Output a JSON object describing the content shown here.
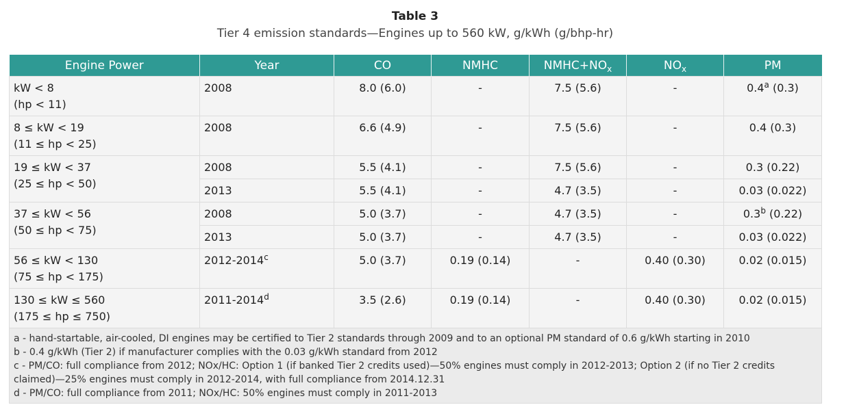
{
  "title": "Table 3",
  "subtitle": "Tier 4 emission standards—Engines up to 560 kW, g/kWh (g/bhp-hr)",
  "headers": {
    "engine_power": "Engine Power",
    "year": "Year",
    "co": "CO",
    "nmhc": "NMHC",
    "nmhc_nox": {
      "main": "NMHC+NO",
      "sub": "x"
    },
    "nox": {
      "main": "NO",
      "sub": "x"
    },
    "pm": "PM"
  },
  "rows": [
    {
      "kw": "kW < 8",
      "hp": "(hp < 11)",
      "entries": [
        {
          "year": "2008",
          "year_sup": "",
          "co": "8.0 (6.0)",
          "nmhc": "-",
          "nmhc_nox": "7.5 (5.6)",
          "nox": "-",
          "pm_main": "0.4",
          "pm_sup": "a",
          "pm_rest": " (0.3)"
        }
      ]
    },
    {
      "kw": "8 ≤ kW < 19",
      "hp": "(11 ≤ hp < 25)",
      "entries": [
        {
          "year": "2008",
          "year_sup": "",
          "co": "6.6 (4.9)",
          "nmhc": "-",
          "nmhc_nox": "7.5 (5.6)",
          "nox": "-",
          "pm_main": "0.4 (0.3)",
          "pm_sup": "",
          "pm_rest": ""
        }
      ]
    },
    {
      "kw": "19 ≤ kW < 37",
      "hp": "(25 ≤ hp < 50)",
      "entries": [
        {
          "year": "2008",
          "year_sup": "",
          "co": "5.5 (4.1)",
          "nmhc": "-",
          "nmhc_nox": "7.5 (5.6)",
          "nox": "-",
          "pm_main": "0.3 (0.22)",
          "pm_sup": "",
          "pm_rest": ""
        },
        {
          "year": "2013",
          "year_sup": "",
          "co": "5.5 (4.1)",
          "nmhc": "-",
          "nmhc_nox": "4.7 (3.5)",
          "nox": "-",
          "pm_main": "0.03 (0.022)",
          "pm_sup": "",
          "pm_rest": ""
        }
      ]
    },
    {
      "kw": "37 ≤ kW < 56",
      "hp": "(50 ≤ hp < 75)",
      "entries": [
        {
          "year": "2008",
          "year_sup": "",
          "co": "5.0 (3.7)",
          "nmhc": "-",
          "nmhc_nox": "4.7 (3.5)",
          "nox": "-",
          "pm_main": "0.3",
          "pm_sup": "b",
          "pm_rest": " (0.22)"
        },
        {
          "year": "2013",
          "year_sup": "",
          "co": "5.0 (3.7)",
          "nmhc": "-",
          "nmhc_nox": "4.7 (3.5)",
          "nox": "-",
          "pm_main": "0.03 (0.022)",
          "pm_sup": "",
          "pm_rest": ""
        }
      ]
    },
    {
      "kw": "56 ≤ kW < 130",
      "hp": "(75 ≤ hp < 175)",
      "entries": [
        {
          "year": "2012-2014",
          "year_sup": "c",
          "co": "5.0 (3.7)",
          "nmhc": "0.19 (0.14)",
          "nmhc_nox": "-",
          "nox": "0.40 (0.30)",
          "pm_main": "0.02 (0.015)",
          "pm_sup": "",
          "pm_rest": ""
        }
      ]
    },
    {
      "kw": "130 ≤ kW ≤ 560",
      "hp": "(175 ≤ hp ≤ 750)",
      "entries": [
        {
          "year": "2011-2014",
          "year_sup": "d",
          "co": "3.5 (2.6)",
          "nmhc": "0.19 (0.14)",
          "nmhc_nox": "-",
          "nox": "0.40 (0.30)",
          "pm_main": "0.02 (0.015)",
          "pm_sup": "",
          "pm_rest": ""
        }
      ]
    }
  ],
  "notes": [
    "a - hand-startable, air-cooled, DI engines may be certified to Tier 2 standards through 2009 and to an optional PM standard of 0.6 g/kWh starting in 2010",
    "b - 0.4 g/kWh (Tier 2) if manufacturer complies with the 0.03 g/kWh standard from 2012",
    "c - PM/CO: full compliance from 2012; NOx/HC: Option 1 (if banked Tier 2 credits used)—50% engines must comply in 2012-2013; Option 2 (if no Tier 2 credits claimed)—25% engines must comply in 2012-2014, with full compliance from 2014.12.31",
    "d - PM/CO: full compliance from 2011; NOx/HC: 50% engines must comply in 2011-2013"
  ]
}
